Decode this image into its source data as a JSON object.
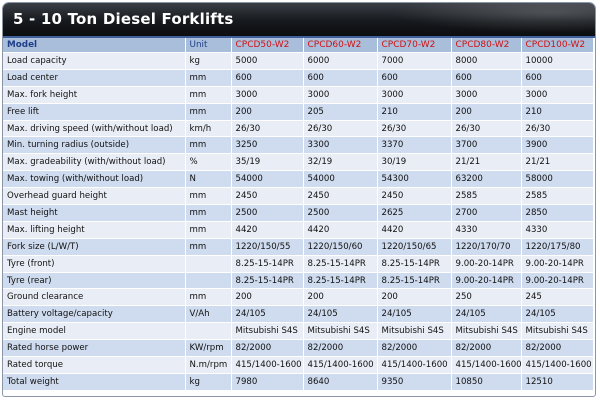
{
  "title": "5 - 10 Ton Diesel Forklifts",
  "header": {
    "model": "Model",
    "unit": "Unit",
    "models": [
      "CPCD50-W2",
      "CPCD60-W2",
      "CPCD70-W2",
      "CPCD80-W2",
      "CPCD100-W2"
    ]
  },
  "rows": [
    {
      "label": "Load capacity",
      "unit": "kg",
      "values": [
        "5000",
        "6000",
        "7000",
        "8000",
        "10000"
      ]
    },
    {
      "label": "Load center",
      "unit": "mm",
      "values": [
        "600",
        "600",
        "600",
        "600",
        "600"
      ]
    },
    {
      "label": "Max. fork height",
      "unit": "mm",
      "values": [
        "3000",
        "3000",
        "3000",
        "3000",
        "3000"
      ]
    },
    {
      "label": "Free lift",
      "unit": "mm",
      "values": [
        "200",
        "205",
        "210",
        "200",
        "210"
      ]
    },
    {
      "label": "Max. driving speed (with/without load)",
      "unit": "km/h",
      "values": [
        "26/30",
        "26/30",
        "26/30",
        "26/30",
        "26/30"
      ]
    },
    {
      "label": "Min. turning radius (outside)",
      "unit": "mm",
      "values": [
        "3250",
        "3300",
        "3370",
        "3700",
        "3900"
      ]
    },
    {
      "label": "Max. gradeability (with/without load)",
      "unit": "%",
      "values": [
        "35/19",
        "32/19",
        "30/19",
        "21/21",
        "21/21"
      ]
    },
    {
      "label": "Max. towing (with/without load)",
      "unit": "N",
      "values": [
        "54000",
        "54000",
        "54300",
        "63200",
        "58000"
      ]
    },
    {
      "label": "Overhead guard height",
      "unit": "mm",
      "values": [
        "2450",
        "2450",
        "2450",
        "2585",
        "2585"
      ]
    },
    {
      "label": "Mast height",
      "unit": "mm",
      "values": [
        "2500",
        "2500",
        "2625",
        "2700",
        "2850"
      ]
    },
    {
      "label": "Max. lifting height",
      "unit": "mm",
      "values": [
        "4420",
        "4420",
        "4420",
        "4330",
        "4330"
      ]
    },
    {
      "label": "Fork size (L/W/T)",
      "unit": "mm",
      "values": [
        "1220/150/55",
        "1220/150/60",
        "1220/150/65",
        "1220/170/70",
        "1220/175/80"
      ]
    },
    {
      "label": "Tyre (front)",
      "unit": "",
      "values": [
        "8.25-15-14PR",
        "8.25-15-14PR",
        "8.25-15-14PR",
        "9.00-20-14PR",
        "9.00-20-14PR"
      ]
    },
    {
      "label": "Tyre (rear)",
      "unit": "",
      "values": [
        "8.25-15-14PR",
        "8.25-15-14PR",
        "8.25-15-14PR",
        "9.00-20-14PR",
        "9.00-20-14PR"
      ]
    },
    {
      "label": "Ground clearance",
      "unit": "mm",
      "values": [
        "200",
        "200",
        "200",
        "250",
        "245"
      ]
    },
    {
      "label": "Battery voltage/capacity",
      "unit": "V/Ah",
      "values": [
        "24/105",
        "24/105",
        "24/105",
        "24/105",
        "24/105"
      ]
    },
    {
      "label": "Engine model",
      "unit": "",
      "values": [
        "Mitsubishi S4S",
        "Mitsubishi S4S",
        "Mitsubishi S4S",
        "Mitsubishi S4S",
        "Mitsubishi S4S"
      ]
    },
    {
      "label": "Rated horse power",
      "unit": "KW/rpm",
      "values": [
        "82/2000",
        "82/2000",
        "82/2000",
        "82/2000",
        "82/2000"
      ]
    },
    {
      "label": "Rated torque",
      "unit": "N.m/rpm",
      "values": [
        "415/1400-1600",
        "415/1400-1600",
        "415/1400-1600",
        "415/1400-1600",
        "415/1400-1600"
      ]
    },
    {
      "label": "Total weight",
      "unit": "kg",
      "values": [
        "7980",
        "8640",
        "9350",
        "10850",
        "12510"
      ]
    }
  ]
}
